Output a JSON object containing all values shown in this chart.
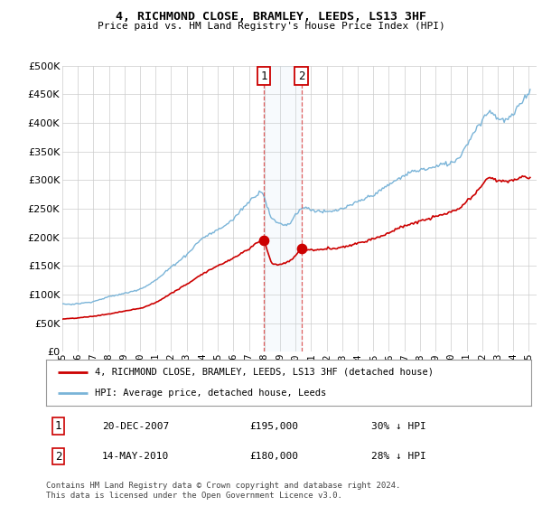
{
  "title": "4, RICHMOND CLOSE, BRAMLEY, LEEDS, LS13 3HF",
  "subtitle": "Price paid vs. HM Land Registry's House Price Index (HPI)",
  "legend_line1": "4, RICHMOND CLOSE, BRAMLEY, LEEDS, LS13 3HF (detached house)",
  "legend_line2": "HPI: Average price, detached house, Leeds",
  "transaction1_label": "1",
  "transaction1_date": "20-DEC-2007",
  "transaction1_price": "£195,000",
  "transaction1_hpi": "30% ↓ HPI",
  "transaction1_year": 2007.95,
  "transaction1_value": 195000,
  "transaction2_label": "2",
  "transaction2_date": "14-MAY-2010",
  "transaction2_price": "£180,000",
  "transaction2_hpi": "28% ↓ HPI",
  "transaction2_year": 2010.37,
  "transaction2_value": 180000,
  "footer": "Contains HM Land Registry data © Crown copyright and database right 2024.\nThis data is licensed under the Open Government Licence v3.0.",
  "hpi_color": "#7ab4d8",
  "price_color": "#cc0000",
  "background_color": "#ffffff",
  "grid_color": "#cccccc",
  "ylim": [
    0,
    500000
  ],
  "xlim_start": 1995.0,
  "xlim_end": 2025.5
}
